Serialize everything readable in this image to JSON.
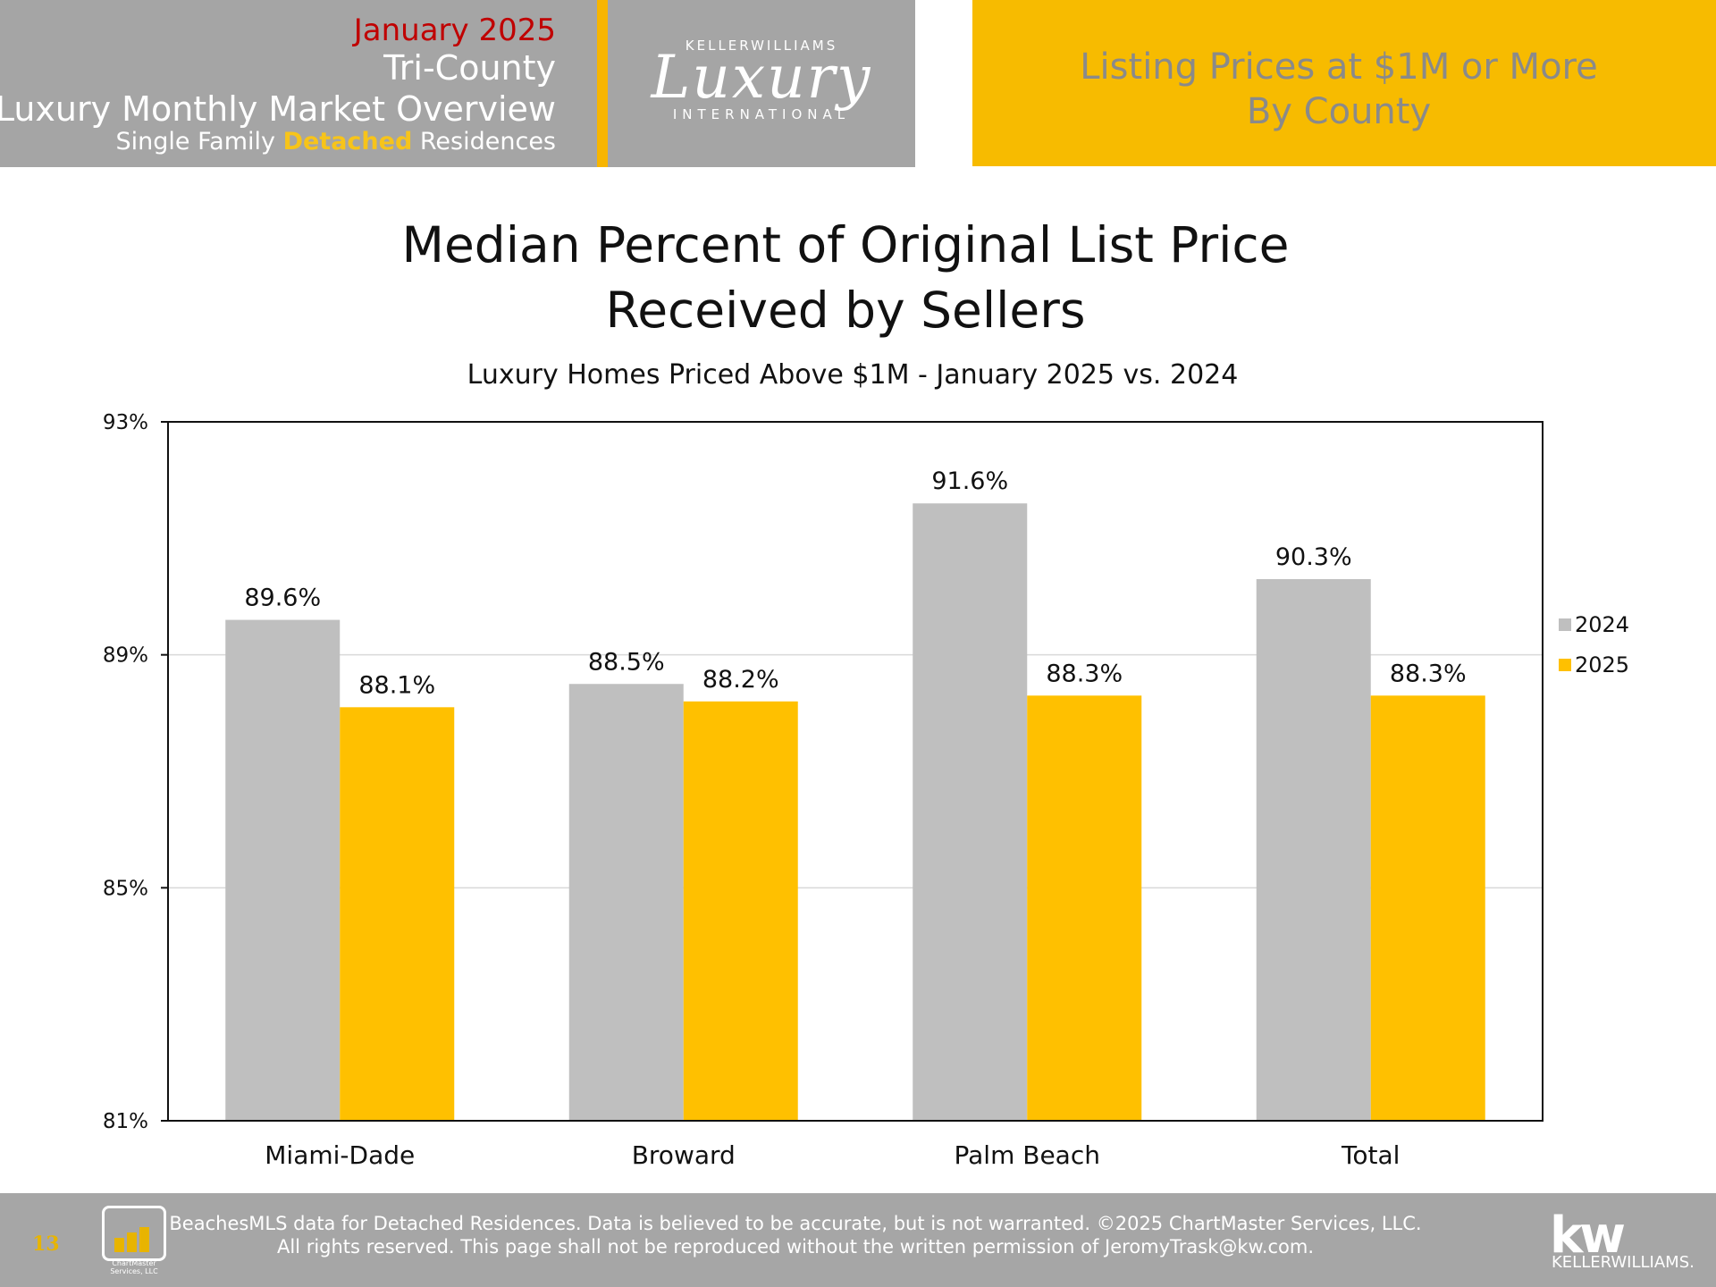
{
  "header": {
    "month": "January 2025",
    "region": "Tri-County",
    "overview": "Luxury Monthly Market Overview",
    "type_prefix": "Single Family ",
    "type_highlight": "Detached",
    "type_suffix": " Residences",
    "logo": {
      "top": "KELLERWILLIAMS",
      "script": "Luxury",
      "bottom": "INTERNATIONAL"
    },
    "right_line1": "Listing Prices at $1M or More",
    "right_line2": "By County"
  },
  "chart_data": {
    "type": "bar",
    "title_line1": "Median Percent of Original List Price",
    "title_line2": "Received by Sellers",
    "subtitle": "Luxury Homes Priced Above $1M - January 2025 vs. 2024",
    "categories": [
      "Miami-Dade",
      "Broward",
      "Palm Beach",
      "Total"
    ],
    "series": [
      {
        "name": "2024",
        "values": [
          89.6,
          88.5,
          91.6,
          90.3
        ],
        "labels": [
          "89.6%",
          "88.5%",
          "91.6%",
          "90.3%"
        ],
        "color": "#bfbfbf"
      },
      {
        "name": "2025",
        "values": [
          88.1,
          88.2,
          88.3,
          88.3
        ],
        "labels": [
          "88.1%",
          "88.2%",
          "88.3%",
          "88.3%"
        ],
        "color": "#ffc000"
      }
    ],
    "ylim": [
      81,
      93
    ],
    "yticks": [
      81,
      85,
      89,
      93
    ],
    "ytick_labels": [
      "81%",
      "85%",
      "89%",
      "93%"
    ],
    "grid": true,
    "legend": "right"
  },
  "footer": {
    "page_number": "13",
    "cm_logo_text": "ChartMaster Services, LLC",
    "line1": "BeachesMLS data for Detached Residences.  Data is believed to be accurate, but is not warranted.   ©2025  ChartMaster Services, LLC.",
    "line2": "All rights reserved. This page shall not be reproduced without the written permission of JeromyTrask@kw.com.",
    "kw_logo": "kw",
    "kw_name": "KELLERWILLIAMS."
  }
}
